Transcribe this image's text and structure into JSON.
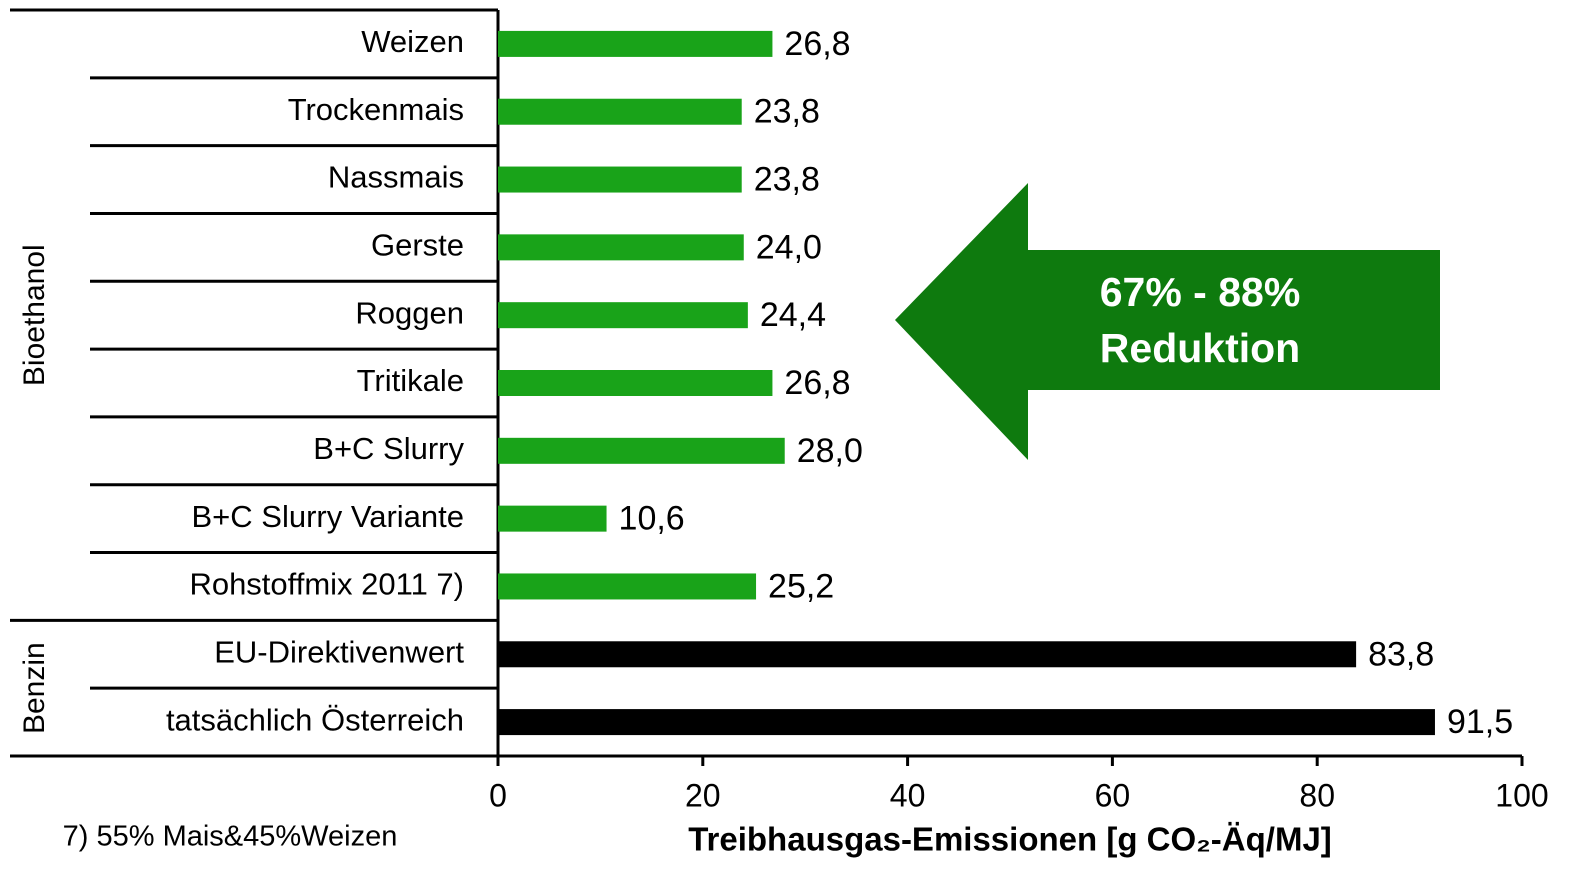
{
  "chart_data": {
    "type": "hbar",
    "categories": [
      "Weizen",
      "Trockenmais",
      "Nassmais",
      "Gerste",
      "Roggen",
      "Tritikale",
      "B+C Slurry",
      "B+C Slurry Variante",
      "Rohstoffmix 2011 7)",
      "EU-Direktivenwert",
      "tatsächlich Österreich"
    ],
    "series": [
      {
        "name": "Bioethanol",
        "color": "#19a319",
        "values": [
          26.8,
          23.8,
          23.8,
          24.0,
          24.4,
          26.8,
          28.0,
          10.6,
          25.2,
          null,
          null
        ],
        "value_labels": [
          "26,8",
          "23,8",
          "23,8",
          "24,0",
          "24,4",
          "26,8",
          "28,0",
          "10,6",
          "25,2",
          null,
          null
        ]
      },
      {
        "name": "Benzin",
        "color": "#000000",
        "values": [
          null,
          null,
          null,
          null,
          null,
          null,
          null,
          null,
          null,
          83.8,
          91.5
        ],
        "value_labels": [
          null,
          null,
          null,
          null,
          null,
          null,
          null,
          null,
          null,
          "83,8",
          "91,5"
        ]
      }
    ],
    "xlim": [
      0,
      100
    ],
    "xticks": [
      0,
      20,
      40,
      60,
      80,
      100
    ],
    "xlabel": "Treibhausgas-Emissionen [g CO₂-Äq/MJ]",
    "annotation": [
      "67% - 88%",
      "Reduktion"
    ],
    "annotation_color": "#0e7a0e",
    "footnote": "7) 55% Mais&45%Weizen"
  }
}
